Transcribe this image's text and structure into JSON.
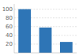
{
  "chart_data": {
    "type": "bar",
    "categories": [
      null,
      null,
      null
    ],
    "values": [
      100,
      58,
      25
    ],
    "color": "#2e75b6",
    "ylim": [
      0,
      112
    ],
    "yticks": [
      20,
      40,
      60,
      80,
      100
    ],
    "grid": true,
    "tick_labels": "y"
  }
}
